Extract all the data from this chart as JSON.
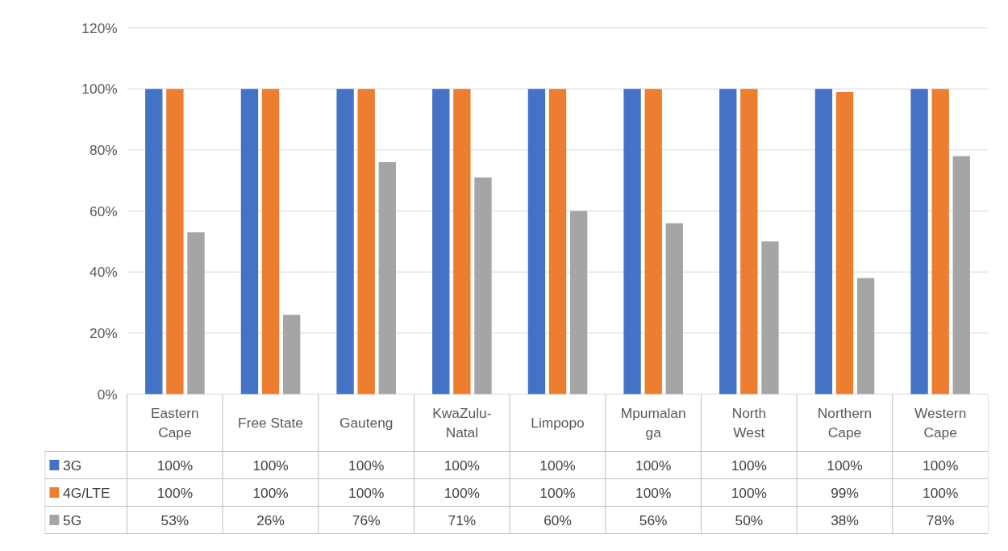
{
  "chart_data": {
    "type": "bar",
    "categories": [
      "Eastern Cape",
      "Free State",
      "Gauteng",
      "KwaZulu-Natal",
      "Limpopo",
      "Mpumalanga",
      "North West",
      "Northern Cape",
      "Western Cape"
    ],
    "series": [
      {
        "name": "3G",
        "color": "#4472c4",
        "values": [
          100,
          100,
          100,
          100,
          100,
          100,
          100,
          100,
          100
        ],
        "value_labels": [
          "100%",
          "100%",
          "100%",
          "100%",
          "100%",
          "100%",
          "100%",
          "100%",
          "100%"
        ]
      },
      {
        "name": "4G/LTE",
        "color": "#ed7d31",
        "values": [
          100,
          100,
          100,
          100,
          100,
          100,
          100,
          99,
          100
        ],
        "value_labels": [
          "100%",
          "100%",
          "100%",
          "100%",
          "100%",
          "100%",
          "100%",
          "99%",
          "100%"
        ]
      },
      {
        "name": "5G",
        "color": "#a5a5a5",
        "values": [
          53,
          26,
          76,
          71,
          60,
          56,
          50,
          38,
          78
        ],
        "value_labels": [
          "53%",
          "26%",
          "76%",
          "71%",
          "60%",
          "56%",
          "50%",
          "38%",
          "78%"
        ]
      }
    ],
    "ylim": [
      0,
      120
    ],
    "yticks": [
      {
        "value": 0,
        "label": "0%"
      },
      {
        "value": 20,
        "label": "20%"
      },
      {
        "value": 40,
        "label": "40%"
      },
      {
        "value": 60,
        "label": "60%"
      },
      {
        "value": 80,
        "label": "80%"
      },
      {
        "value": 100,
        "label": "100%"
      },
      {
        "value": 120,
        "label": "120%"
      }
    ],
    "grid": "y",
    "legend": "bottom"
  }
}
